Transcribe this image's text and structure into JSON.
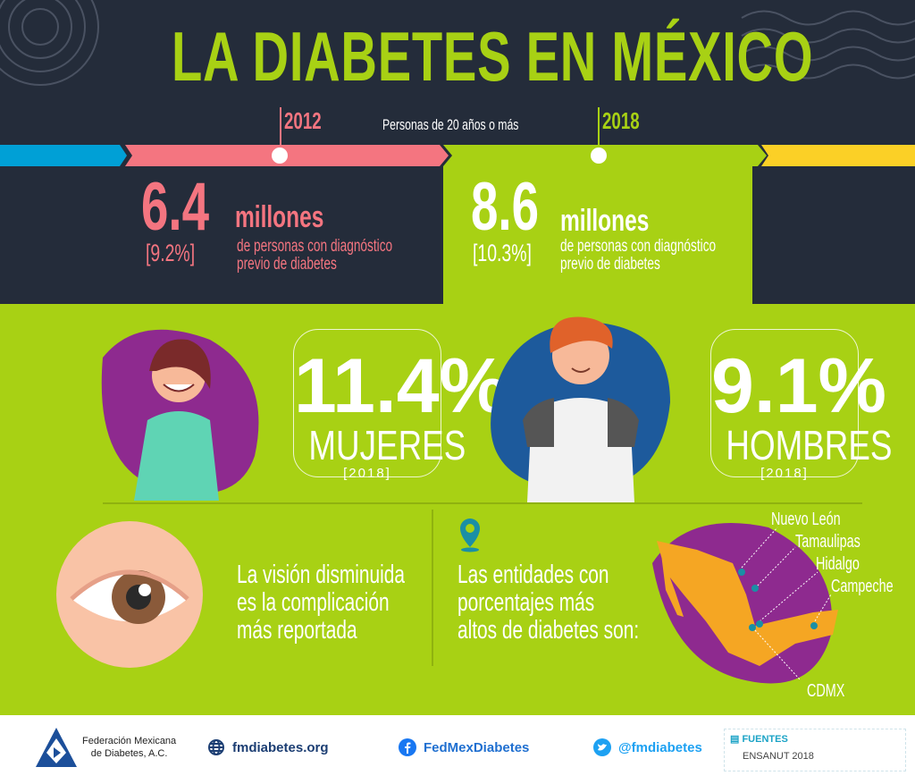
{
  "title": "LA DIABETES EN MÉXICO",
  "subtitle": "Personas de 20 años o más",
  "timeline": [
    {
      "year": "2012",
      "value": "6.4",
      "unit": "millones",
      "percent": "[9.2%]",
      "desc_line1": "de personas con diagnóstico",
      "desc_line2": "previo de diabetes"
    },
    {
      "year": "2018",
      "value": "8.6",
      "unit": "millones",
      "percent": "[10.3%]",
      "desc_line1": "de personas con diagnóstico",
      "desc_line2": "previo de diabetes"
    }
  ],
  "gender": [
    {
      "percent": "11.4%",
      "label": "MUJERES",
      "year": "[2018]"
    },
    {
      "percent": "9.1%",
      "label": "HOMBRES",
      "year": "[2018]"
    }
  ],
  "vision": {
    "line1": "La visión disminuida",
    "line2": "es la complicación",
    "line3": "más reportada"
  },
  "states": {
    "line1": "Las entidades con",
    "line2": "porcentajes más",
    "line3": "altos de diabetes son:",
    "names": [
      "Nuevo León",
      "Tamaulipas",
      "Hidalgo",
      "Campeche",
      "CDMX"
    ]
  },
  "footer": {
    "org_line1": "Federación Mexicana",
    "org_line2": "de Diabetes, A.C.",
    "website": "fmdiabetes.org",
    "facebook": "FedMexDiabetes",
    "twitter": "@fmdiabetes",
    "sources_label": "FUENTES",
    "sources_value": "ENSANUT 2018"
  },
  "colors": {
    "navy": "#242c3a",
    "green": "#a8d114",
    "pink": "#f47580",
    "blue": "#00a0d6",
    "yellow": "#fbd026"
  }
}
